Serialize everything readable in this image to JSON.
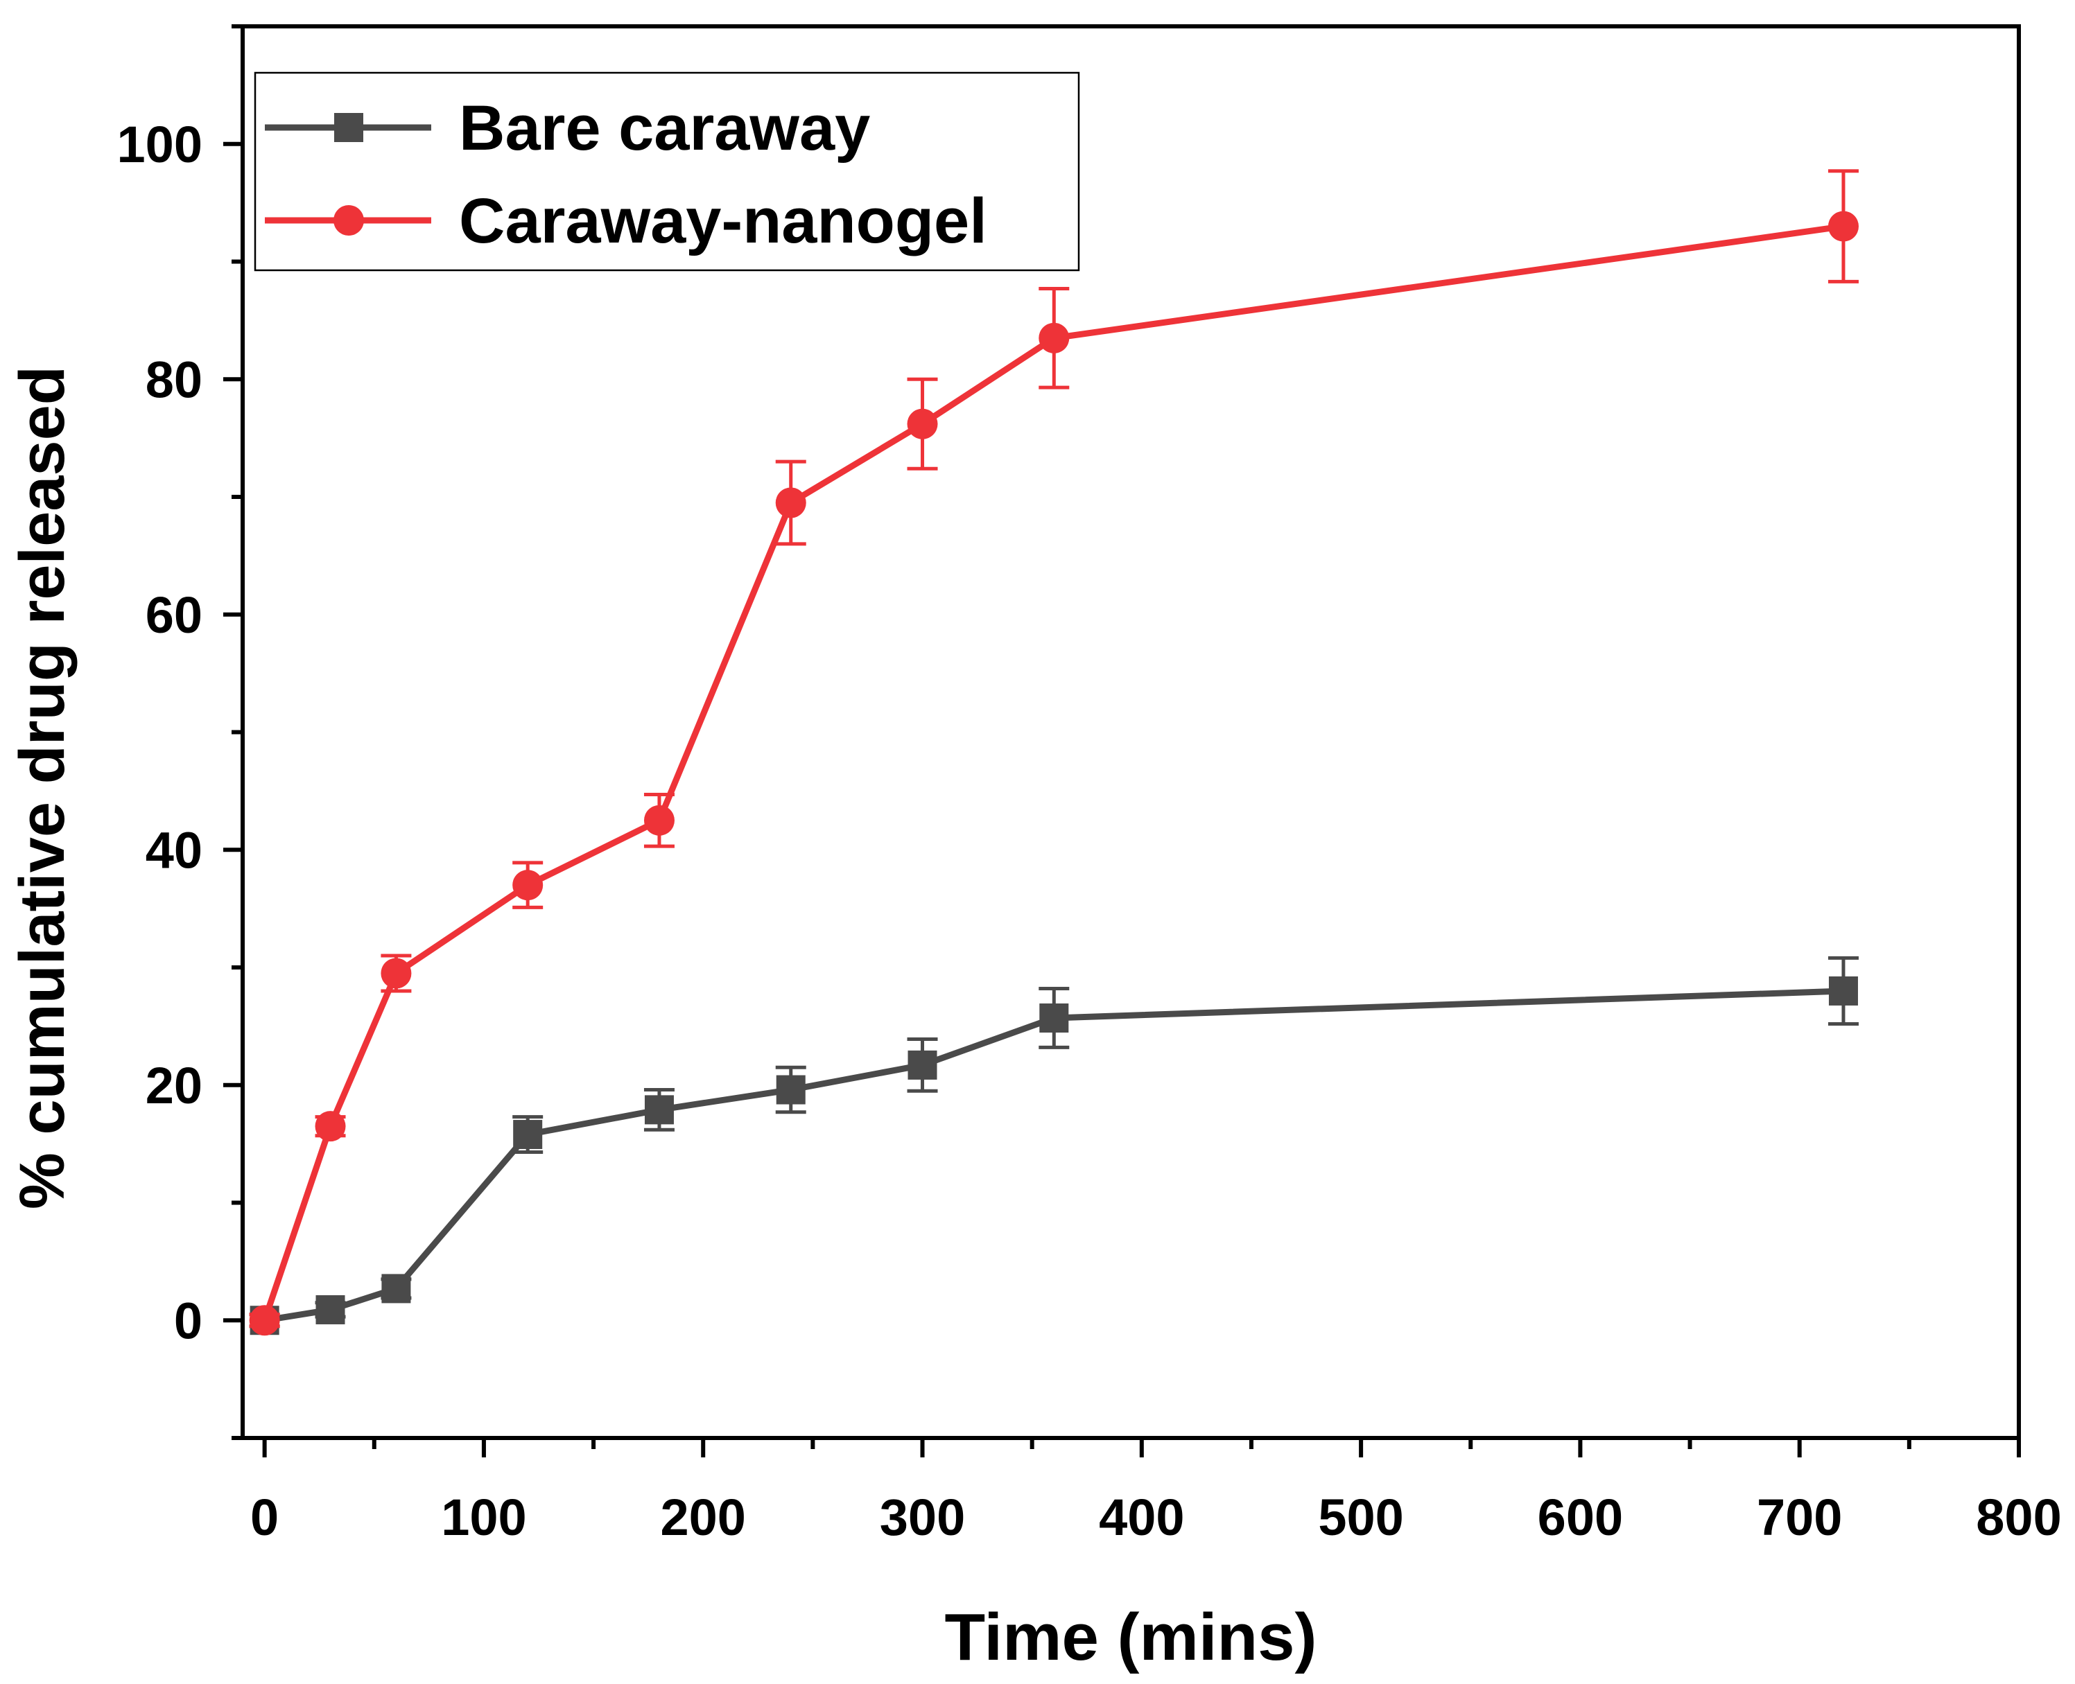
{
  "chart_data": {
    "type": "line",
    "title": "",
    "xlabel": "Time (mins)",
    "ylabel": "% cumulative drug released",
    "xlim": [
      -10,
      800
    ],
    "ylim": [
      -10,
      110
    ],
    "xticks": [
      0,
      100,
      200,
      300,
      400,
      500,
      600,
      700,
      800
    ],
    "yticks": [
      0,
      20,
      40,
      60,
      80,
      100
    ],
    "xtick_labels": [
      "0",
      "100",
      "200",
      "300",
      "400",
      "500",
      "600",
      "700",
      "800"
    ],
    "ytick_labels": [
      "0",
      "20",
      "40",
      "60",
      "80",
      "100"
    ],
    "grid": false,
    "legend_position": "top-left",
    "series": [
      {
        "name": "Bare caraway",
        "color": "#4a4a4a",
        "marker": "square",
        "x": [
          0,
          30,
          60,
          120,
          180,
          240,
          300,
          360,
          720
        ],
        "y": [
          0,
          0.9,
          2.7,
          15.8,
          17.9,
          19.6,
          21.7,
          25.7,
          28.0
        ],
        "error": [
          0.5,
          0.6,
          0.8,
          1.5,
          1.7,
          1.9,
          2.2,
          2.5,
          2.8
        ]
      },
      {
        "name": "Caraway-nanogel",
        "color": "#ee3338",
        "marker": "circle",
        "x": [
          0,
          30,
          60,
          120,
          180,
          240,
          300,
          360,
          720
        ],
        "y": [
          0,
          16.5,
          29.5,
          37.0,
          42.5,
          69.5,
          76.2,
          83.5,
          93.0
        ],
        "error": [
          0.5,
          0.8,
          1.5,
          1.9,
          2.2,
          3.5,
          3.8,
          4.2,
          4.7
        ]
      }
    ]
  }
}
